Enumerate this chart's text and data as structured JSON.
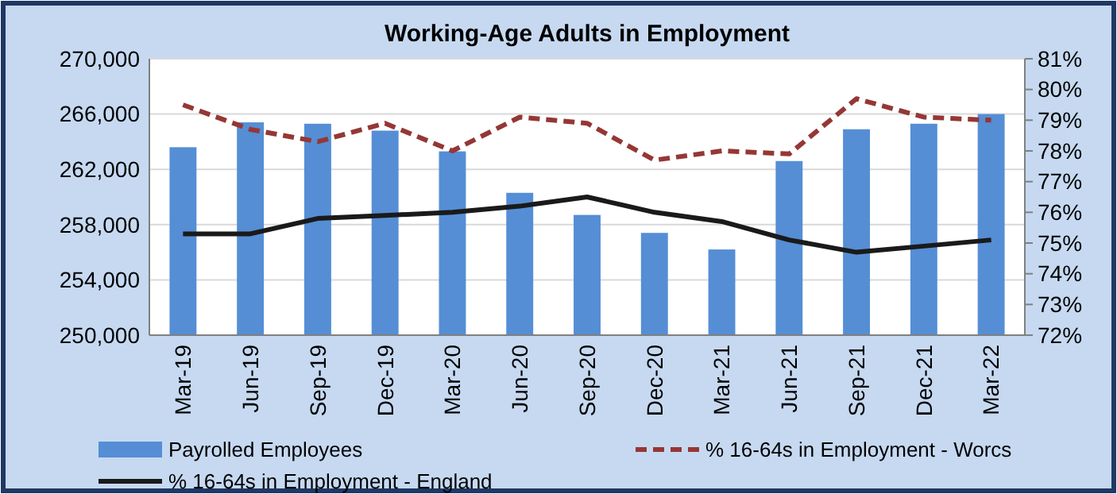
{
  "chart_data": {
    "type": "bar",
    "title": "Working-Age Adults in Employment",
    "categories": [
      "Mar-19",
      "Jun-19",
      "Sep-19",
      "Dec-19",
      "Mar-20",
      "Jun-20",
      "Sep-20",
      "Dec-20",
      "Mar-21",
      "Jun-21",
      "Sep-21",
      "Dec-21",
      "Mar-22"
    ],
    "series": [
      {
        "name": "Payrolled Employees",
        "color": "#558ed5",
        "values": [
          263600,
          265400,
          265300,
          264800,
          263300,
          260300,
          258700,
          257400,
          256200,
          262600,
          264900,
          265300,
          266000
        ]
      },
      {
        "name": "% 16-64s in Employment - Worcs",
        "type": "line",
        "axis": "y2",
        "color": "#953735",
        "line_style": "dashed",
        "values": [
          79.5,
          78.7,
          78.3,
          78.9,
          78.0,
          79.1,
          78.9,
          77.7,
          78.0,
          77.9,
          79.7,
          79.1,
          79.0
        ]
      },
      {
        "name": "% 16-64s in Employment - England",
        "type": "line",
        "axis": "y2",
        "color": "#1a1a1a",
        "line_style": "solid",
        "values": [
          75.3,
          75.3,
          75.8,
          75.9,
          76.0,
          76.2,
          76.5,
          76.0,
          75.7,
          75.1,
          74.7,
          74.9,
          75.1
        ]
      }
    ],
    "ylim": [
      250000,
      270000
    ],
    "yticks": [
      {
        "value": 250000,
        "label": "250,000"
      },
      {
        "value": 254000,
        "label": "254,000"
      },
      {
        "value": 258000,
        "label": "258,000"
      },
      {
        "value": 262000,
        "label": "262,000"
      },
      {
        "value": 266000,
        "label": "266,000"
      },
      {
        "value": 270000,
        "label": "270,000"
      }
    ],
    "y2lim": [
      72,
      81
    ],
    "y2ticks": [
      {
        "value": 72,
        "label": "72%"
      },
      {
        "value": 73,
        "label": "73%"
      },
      {
        "value": 74,
        "label": "74%"
      },
      {
        "value": 75,
        "label": "75%"
      },
      {
        "value": 76,
        "label": "76%"
      },
      {
        "value": 77,
        "label": "77%"
      },
      {
        "value": 78,
        "label": "78%"
      },
      {
        "value": 79,
        "label": "79%"
      },
      {
        "value": 80,
        "label": "80%"
      },
      {
        "value": 81,
        "label": "81%"
      }
    ],
    "grid": "y",
    "legend": "bottom"
  }
}
